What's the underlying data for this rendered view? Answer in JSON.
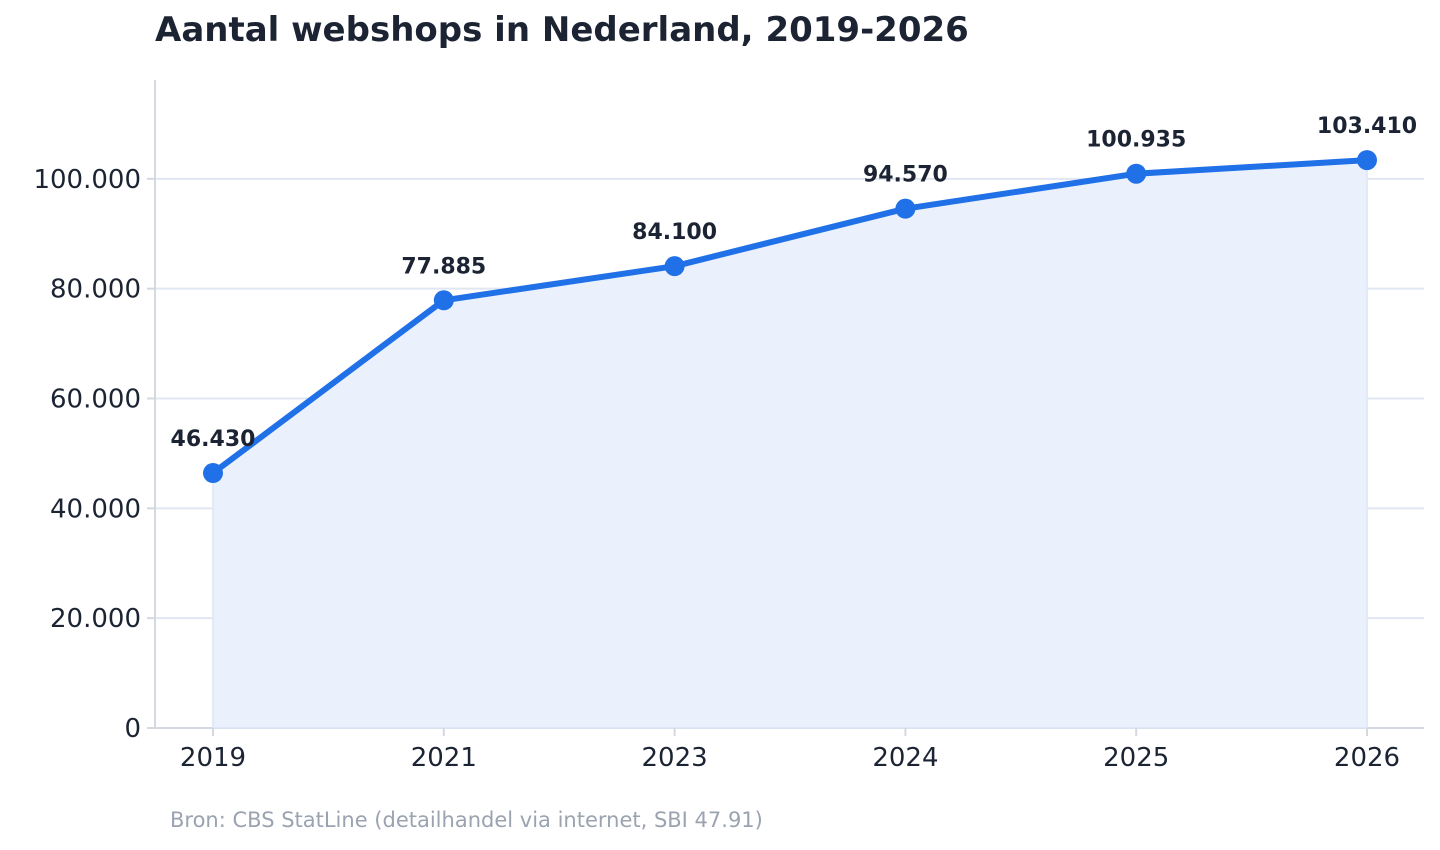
{
  "title": "Aantal webshops in Nederland, 2019-2026",
  "source": "Bron: CBS StatLine (detailhandel via internet, SBI 47.91)",
  "colors": {
    "line": "#2070e8",
    "area": "#eaf1fc",
    "grid": "#e1e7f2",
    "axis": "#d4d8df",
    "text": "#1c2434",
    "muted": "#9ba3b1"
  },
  "chart_data": {
    "type": "area",
    "title": "Aantal webshops in Nederland, 2019-2026",
    "xlabel": "",
    "ylabel": "",
    "categories": [
      "2019",
      "2021",
      "2023",
      "2024",
      "2025",
      "2026"
    ],
    "values": [
      46430,
      77885,
      84100,
      94570,
      100935,
      103410
    ],
    "value_labels": [
      "46.430",
      "77.885",
      "84.100",
      "94.570",
      "100.935",
      "103.410"
    ],
    "yticks": [
      0,
      20000,
      40000,
      60000,
      80000,
      100000
    ],
    "ytick_labels": [
      "0",
      "20.000",
      "40.000",
      "60.000",
      "80.000",
      "100.000"
    ],
    "ylim": [
      0,
      118000
    ],
    "grid": true,
    "legend": "none"
  }
}
